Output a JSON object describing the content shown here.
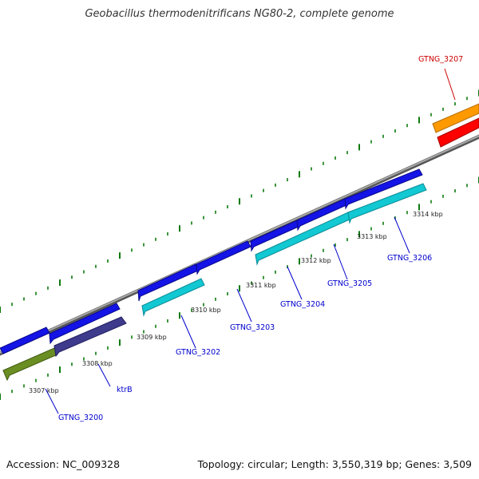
{
  "title": "Geobacillus thermodenitrificans NG80-2, complete genome",
  "footer": {
    "accession": "Accession: NC_009328",
    "summary": "Topology: circular; Length: 3,550,319 bp; Genes: 3,509"
  },
  "colors": {
    "forward_gene": "#1414e6",
    "cds_cyan": "#12c8d2",
    "cds_navy": "#3e3a8c",
    "cds_olive": "#6b8e23",
    "cds_orange": "#ff9900",
    "cds_red": "#ff0000",
    "backbone": "#808080",
    "tick": "#0d7a0d",
    "label_blue": "#0000cc",
    "label_red": "#cc0000"
  },
  "kbp_labels": [
    "3307 kbp",
    "3308 kbp",
    "3309 kbp",
    "3310 kbp",
    "3311 kbp",
    "3312 kbp",
    "3313 kbp",
    "3314 kbp"
  ],
  "gene_labels": [
    {
      "name": "GTNG_3200",
      "color": "blue"
    },
    {
      "name": "ktrB",
      "color": "blue"
    },
    {
      "name": "GTNG_3202",
      "color": "blue"
    },
    {
      "name": "GTNG_3203",
      "color": "blue"
    },
    {
      "name": "GTNG_3204",
      "color": "blue"
    },
    {
      "name": "GTNG_3205",
      "color": "blue"
    },
    {
      "name": "GTNG_3206",
      "color": "blue"
    },
    {
      "name": "GTNG_3207",
      "color": "red"
    }
  ]
}
